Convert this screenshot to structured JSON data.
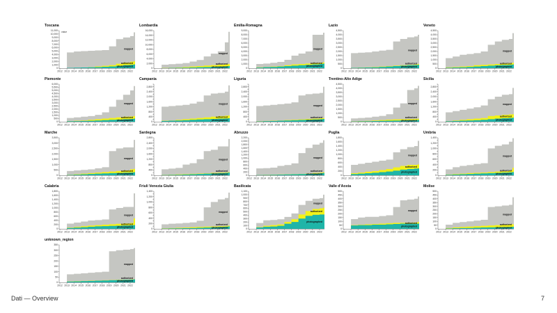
{
  "footer": {
    "title": "Dati — Overview",
    "page": "7"
  },
  "colors": {
    "mapped": "#c5c6c2",
    "authorized": "#f2f218",
    "photographed": "#1fb5a8",
    "axis": "#333333"
  },
  "chart_data": {
    "type": "area",
    "stacking": "overlaid cumulative step areas",
    "ylabel": "value",
    "series_labels": [
      "mapped",
      "authorized",
      "photographed"
    ],
    "x": [
      2012,
      2013,
      2014,
      2015,
      2016,
      2017,
      2018,
      2019,
      2020,
      2021,
      2022,
      2022.5
    ],
    "x_ticks": [
      "2012",
      "2013",
      "2014",
      "2015",
      "2016",
      "2017",
      "2018",
      "2019",
      "2020",
      "2021",
      "2022"
    ],
    "panels": [
      {
        "region": "Toscana",
        "ymax": 11000,
        "ystep": 1000,
        "mapped": [
          0,
          4600,
          4900,
          5000,
          5100,
          5200,
          5300,
          6400,
          8500,
          9000,
          9400,
          10500
        ],
        "authorized": [
          0,
          0,
          100,
          200,
          300,
          500,
          700,
          900,
          1300,
          1600,
          1900,
          2000
        ],
        "photographed": [
          0,
          100,
          150,
          200,
          250,
          300,
          400,
          500,
          700,
          900,
          1000,
          1100
        ]
      },
      {
        "region": "Lombardia",
        "ymax": 16000,
        "ystep": 2000,
        "mapped": [
          0,
          1500,
          1700,
          1900,
          2200,
          2800,
          3500,
          5000,
          6200,
          7200,
          11000,
          15500
        ],
        "authorized": [
          0,
          100,
          200,
          300,
          500,
          700,
          900,
          1100,
          1300,
          1500,
          1700,
          1800
        ],
        "photographed": [
          0,
          50,
          100,
          150,
          200,
          300,
          400,
          500,
          600,
          700,
          800,
          900
        ]
      },
      {
        "region": "Emilia-Romagna",
        "ymax": 9000,
        "ystep": 1000,
        "mapped": [
          0,
          1000,
          1100,
          1300,
          1500,
          2000,
          3000,
          3500,
          4000,
          8000,
          8000,
          8500
        ],
        "authorized": [
          0,
          200,
          300,
          400,
          500,
          700,
          900,
          1000,
          1100,
          1200,
          1300,
          1400
        ],
        "photographed": [
          0,
          150,
          250,
          300,
          400,
          500,
          600,
          700,
          800,
          900,
          1000,
          1100
        ]
      },
      {
        "region": "Lazio",
        "ymax": 4500,
        "ystep": 500,
        "mapped": [
          0,
          1800,
          1850,
          1900,
          2000,
          2100,
          2200,
          3200,
          3500,
          3700,
          3800,
          4000
        ],
        "authorized": [
          0,
          50,
          80,
          100,
          150,
          200,
          250,
          300,
          350,
          400,
          450,
          500
        ],
        "photographed": [
          0,
          40,
          60,
          80,
          100,
          150,
          200,
          250,
          300,
          350,
          380,
          400
        ]
      },
      {
        "region": "Veneto",
        "ymax": 4500,
        "ystep": 500,
        "mapped": [
          0,
          1200,
          1400,
          1600,
          1700,
          1800,
          2000,
          2800,
          3200,
          3400,
          3500,
          4200
        ],
        "authorized": [
          0,
          100,
          150,
          200,
          250,
          350,
          400,
          450,
          500,
          550,
          600,
          650
        ],
        "photographed": [
          0,
          50,
          80,
          100,
          150,
          200,
          250,
          300,
          350,
          380,
          400,
          450
        ]
      },
      {
        "region": "Piemonte",
        "ymax": 6000,
        "ystep": 500,
        "mapped": [
          0,
          600,
          700,
          800,
          900,
          1100,
          1500,
          2400,
          3500,
          4300,
          5000,
          5700
        ],
        "authorized": [
          0,
          100,
          150,
          200,
          300,
          400,
          500,
          600,
          700,
          800,
          850,
          900
        ],
        "photographed": [
          0,
          80,
          100,
          120,
          150,
          200,
          250,
          300,
          350,
          400,
          450,
          500
        ]
      },
      {
        "region": "Campania",
        "ymax": 3000,
        "ystep": 200,
        "mapped": [
          0,
          1200,
          1250,
          1300,
          1350,
          1450,
          1600,
          2100,
          2250,
          2300,
          2400,
          2900
        ],
        "authorized": [
          0,
          80,
          100,
          150,
          200,
          250,
          300,
          350,
          400,
          450,
          480,
          500
        ],
        "photographed": [
          0,
          60,
          80,
          100,
          120,
          150,
          180,
          200,
          220,
          240,
          260,
          280
        ]
      },
      {
        "region": "Liguria",
        "ymax": 3000,
        "ystep": 200,
        "mapped": [
          0,
          1250,
          1300,
          1350,
          1400,
          1450,
          1550,
          2100,
          2200,
          2250,
          2300,
          2800
        ],
        "authorized": [
          0,
          40,
          60,
          80,
          100,
          130,
          160,
          190,
          220,
          250,
          280,
          300
        ],
        "photographed": [
          0,
          30,
          50,
          60,
          80,
          100,
          120,
          140,
          160,
          180,
          200,
          220
        ]
      },
      {
        "region": "Trentino-Alto Adige",
        "ymax": 4500,
        "ystep": 500,
        "mapped": [
          0,
          400,
          450,
          500,
          600,
          700,
          900,
          1700,
          2200,
          3800,
          4000,
          4300
        ],
        "authorized": [
          0,
          50,
          80,
          100,
          150,
          200,
          250,
          280,
          300,
          320,
          340,
          350
        ],
        "photographed": [
          0,
          30,
          50,
          60,
          80,
          100,
          120,
          140,
          160,
          180,
          200,
          220
        ]
      },
      {
        "region": "Sicilia",
        "ymax": 3000,
        "ystep": 200,
        "mapped": [
          0,
          750,
          850,
          950,
          1050,
          1150,
          1300,
          1800,
          2000,
          2150,
          2200,
          2700
        ],
        "authorized": [
          0,
          50,
          100,
          150,
          200,
          250,
          300,
          450,
          500,
          550,
          580,
          600
        ],
        "photographed": [
          0,
          40,
          60,
          80,
          100,
          120,
          150,
          200,
          250,
          280,
          300,
          320
        ]
      },
      {
        "region": "Marche",
        "ymax": 3500,
        "ystep": 500,
        "mapped": [
          0,
          400,
          450,
          500,
          550,
          650,
          750,
          2250,
          2500,
          2600,
          2600,
          3300
        ],
        "authorized": [
          0,
          50,
          100,
          150,
          200,
          250,
          300,
          350,
          400,
          450,
          550,
          600
        ],
        "photographed": [
          0,
          30,
          60,
          90,
          120,
          150,
          180,
          200,
          220,
          240,
          260,
          280
        ]
      },
      {
        "region": "Sardegna",
        "ymax": 2800,
        "ystep": 200,
        "mapped": [
          0,
          450,
          500,
          550,
          800,
          900,
          1200,
          1800,
          1900,
          2150,
          2150,
          2700
        ],
        "authorized": [
          0,
          30,
          50,
          70,
          90,
          110,
          130,
          150,
          180,
          200,
          220,
          240
        ],
        "photographed": [
          0,
          20,
          30,
          40,
          60,
          80,
          100,
          120,
          140,
          160,
          180,
          200
        ]
      },
      {
        "region": "Abruzzo",
        "ymax": 2200,
        "ystep": 200,
        "mapped": [
          0,
          400,
          420,
          450,
          550,
          600,
          700,
          1300,
          1600,
          1800,
          1900,
          2050
        ],
        "authorized": [
          0,
          20,
          30,
          40,
          50,
          60,
          70,
          80,
          100,
          140,
          160,
          180
        ],
        "photographed": [
          0,
          15,
          20,
          30,
          40,
          50,
          60,
          70,
          80,
          100,
          120,
          140
        ]
      },
      {
        "region": "Puglia",
        "ymax": 1800,
        "ystep": 200,
        "mapped": [
          0,
          500,
          550,
          600,
          650,
          700,
          750,
          1100,
          1250,
          1350,
          1400,
          1650
        ],
        "authorized": [
          0,
          100,
          130,
          170,
          200,
          250,
          300,
          380,
          450,
          500,
          500,
          520
        ],
        "photographed": [
          0,
          60,
          80,
          100,
          120,
          150,
          180,
          220,
          270,
          300,
          320,
          330
        ]
      },
      {
        "region": "Umbria",
        "ymax": 1400,
        "ystep": 100,
        "mapped": [
          0,
          220,
          300,
          350,
          380,
          420,
          450,
          1000,
          1100,
          1150,
          1250,
          1380
        ],
        "authorized": [
          0,
          30,
          50,
          60,
          80,
          90,
          100,
          120,
          140,
          150,
          180,
          280
        ],
        "photographed": [
          0,
          20,
          30,
          40,
          50,
          60,
          70,
          80,
          90,
          100,
          110,
          120
        ]
      },
      {
        "region": "Calabria",
        "ymax": 1800,
        "ystep": 200,
        "mapped": [
          0,
          250,
          300,
          350,
          400,
          420,
          450,
          930,
          1000,
          1050,
          1050,
          1700
        ],
        "authorized": [
          0,
          60,
          90,
          130,
          160,
          180,
          200,
          220,
          240,
          260,
          280,
          500
        ],
        "photographed": [
          0,
          40,
          60,
          80,
          100,
          120,
          130,
          140,
          150,
          160,
          170,
          180
        ]
      },
      {
        "region": "Friuli Venezia Giulia",
        "ymax": 1400,
        "ystep": 100,
        "mapped": [
          0,
          170,
          190,
          200,
          220,
          240,
          300,
          800,
          1000,
          1100,
          1150,
          1350
        ],
        "authorized": [
          0,
          20,
          30,
          40,
          50,
          60,
          70,
          80,
          90,
          100,
          110,
          120
        ],
        "photographed": [
          0,
          10,
          15,
          20,
          25,
          30,
          40,
          50,
          60,
          70,
          80,
          90
        ]
      },
      {
        "region": "Basilicata",
        "ymax": 1100,
        "ystep": 100,
        "mapped": [
          0,
          170,
          250,
          260,
          280,
          350,
          450,
          700,
          820,
          880,
          900,
          1000
        ],
        "authorized": [
          0,
          50,
          90,
          110,
          130,
          200,
          280,
          420,
          520,
          580,
          600,
          620
        ],
        "photographed": [
          0,
          40,
          60,
          70,
          90,
          150,
          200,
          300,
          380,
          410,
          420,
          420
        ]
      },
      {
        "region": "Valle d'Aosta",
        "ymax": 500,
        "ystep": 50,
        "mapped": [
          0,
          130,
          150,
          160,
          160,
          170,
          180,
          290,
          380,
          390,
          400,
          430
        ],
        "authorized": [
          0,
          50,
          55,
          60,
          65,
          70,
          75,
          80,
          80,
          80,
          85,
          90
        ],
        "photographed": [
          0,
          45,
          50,
          50,
          55,
          55,
          60,
          65,
          70,
          70,
          70,
          70
        ]
      },
      {
        "region": "Molise",
        "ymax": 500,
        "ystep": 50,
        "mapped": [
          0,
          55,
          80,
          90,
          100,
          110,
          120,
          290,
          300,
          310,
          320,
          420
        ],
        "authorized": [
          0,
          10,
          20,
          25,
          30,
          35,
          40,
          45,
          50,
          55,
          60,
          60
        ],
        "photographed": [
          0,
          5,
          8,
          10,
          12,
          15,
          18,
          20,
          22,
          24,
          26,
          28
        ]
      },
      {
        "region": "unknown_region",
        "ymax": 350,
        "ystep": 50,
        "mapped": [
          0,
          75,
          80,
          85,
          90,
          95,
          100,
          290,
          300,
          305,
          310,
          320
        ],
        "authorized": [
          0,
          10,
          12,
          14,
          16,
          18,
          20,
          22,
          24,
          26,
          28,
          30
        ],
        "photographed": [
          0,
          8,
          10,
          12,
          14,
          16,
          18,
          20,
          22,
          24,
          26,
          28
        ]
      }
    ]
  }
}
